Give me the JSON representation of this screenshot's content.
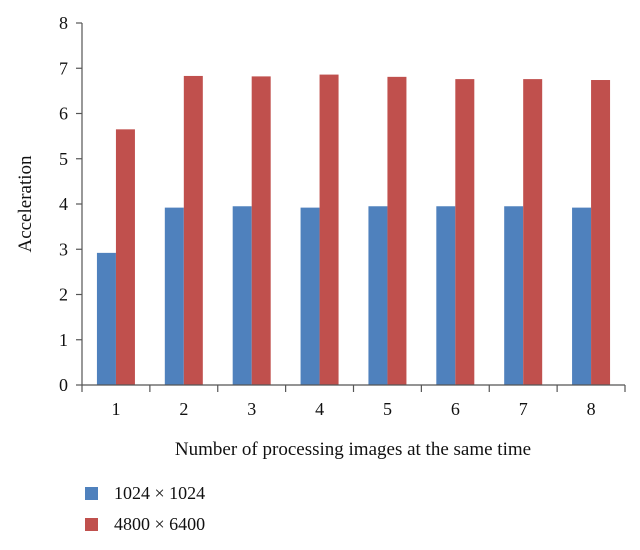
{
  "chart_data": {
    "type": "bar",
    "title": "",
    "xlabel": "Number of processing images at the same time",
    "ylabel": "Acceleration",
    "categories": [
      "1",
      "2",
      "3",
      "4",
      "5",
      "6",
      "7",
      "8"
    ],
    "ylim": [
      0,
      8
    ],
    "yticks": [
      "0",
      "1",
      "2",
      "3",
      "4",
      "5",
      "6",
      "7",
      "8"
    ],
    "grid": false,
    "legend_position": "bottom-left",
    "series": [
      {
        "name": "1024 × 1024",
        "color": "#4f81bd",
        "values": [
          2.92,
          3.92,
          3.95,
          3.92,
          3.95,
          3.95,
          3.95,
          3.92
        ]
      },
      {
        "name": "4800 × 6400",
        "color": "#c0504d",
        "values": [
          5.65,
          6.83,
          6.82,
          6.86,
          6.81,
          6.76,
          6.76,
          6.74
        ]
      }
    ]
  }
}
